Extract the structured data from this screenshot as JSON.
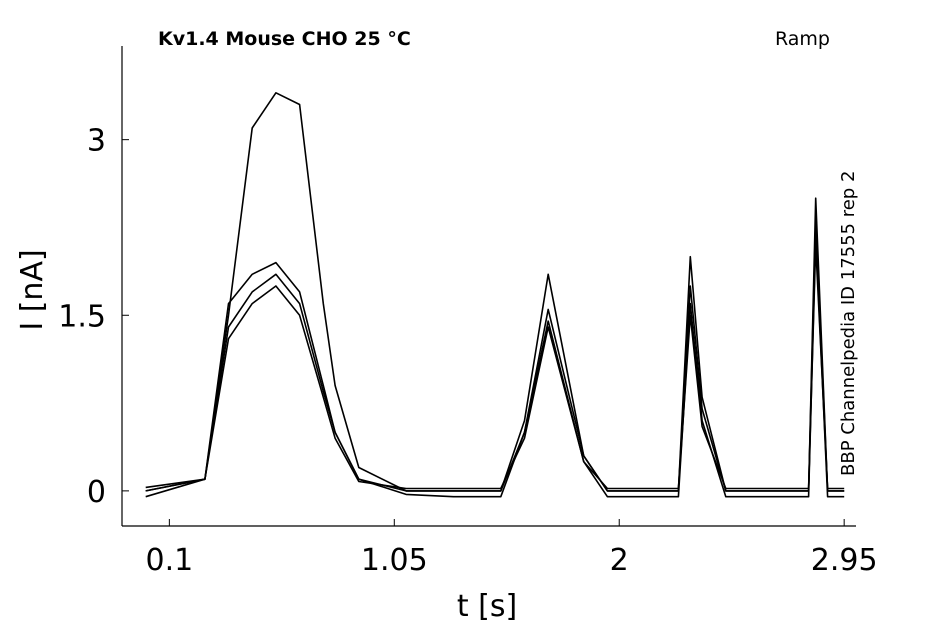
{
  "chart_data": {
    "type": "line",
    "title": "Kv1.4  Mouse  CHO  25 °C",
    "protocol": "Ramp",
    "source": "BBP Channelpedia ID 17555 rep 2",
    "xlabel": "t [s]",
    "ylabel": "I [nA]",
    "xticks": [
      "0.1",
      "1.05",
      "2",
      "2.95"
    ],
    "yticks": [
      "0",
      "1.5",
      "3"
    ],
    "xlim": [
      -0.1,
      3.0
    ],
    "ylim": [
      -0.3,
      3.8
    ],
    "grid": false,
    "series": [
      {
        "x": [
          0.0,
          0.25,
          0.35,
          0.45,
          0.55,
          0.65,
          0.75,
          0.8,
          0.9,
          1.1,
          1.3,
          1.5,
          1.6,
          1.7,
          1.85,
          1.95,
          2.1,
          2.25,
          2.3,
          2.35,
          2.45,
          2.6,
          2.75,
          2.8,
          2.83,
          2.88,
          2.95
        ],
        "y": [
          0.0,
          0.1,
          1.5,
          3.1,
          3.4,
          3.3,
          1.6,
          0.9,
          0.2,
          0.0,
          0.0,
          0.0,
          0.6,
          1.85,
          0.3,
          0.0,
          0.0,
          0.0,
          2.0,
          0.8,
          0.0,
          0.0,
          0.0,
          0.0,
          2.5,
          0.0,
          0.0
        ]
      },
      {
        "x": [
          0.0,
          0.25,
          0.35,
          0.45,
          0.55,
          0.65,
          0.75,
          0.8,
          0.9,
          1.1,
          1.3,
          1.5,
          1.6,
          1.7,
          1.85,
          1.95,
          2.1,
          2.25,
          2.3,
          2.35,
          2.45,
          2.6,
          2.75,
          2.8,
          2.83,
          2.88,
          2.95
        ],
        "y": [
          0.0,
          0.1,
          1.6,
          1.85,
          1.95,
          1.7,
          0.9,
          0.5,
          0.1,
          0.0,
          0.0,
          0.0,
          0.5,
          1.55,
          0.3,
          0.0,
          0.0,
          0.0,
          1.75,
          0.7,
          0.0,
          0.0,
          0.0,
          0.0,
          2.35,
          0.0,
          0.0
        ]
      },
      {
        "x": [
          0.0,
          0.25,
          0.35,
          0.45,
          0.55,
          0.65,
          0.75,
          0.8,
          0.9,
          1.1,
          1.3,
          1.5,
          1.6,
          1.7,
          1.85,
          1.95,
          2.1,
          2.25,
          2.3,
          2.35,
          2.45,
          2.6,
          2.75,
          2.8,
          2.83,
          2.88,
          2.95
        ],
        "y": [
          -0.05,
          0.1,
          1.4,
          1.7,
          1.85,
          1.6,
          0.85,
          0.5,
          0.1,
          -0.03,
          -0.05,
          -0.05,
          0.5,
          1.45,
          0.25,
          -0.05,
          -0.05,
          -0.05,
          1.6,
          0.6,
          -0.05,
          -0.05,
          -0.05,
          -0.05,
          2.2,
          -0.05,
          -0.05
        ]
      },
      {
        "x": [
          0.0,
          0.25,
          0.35,
          0.45,
          0.55,
          0.65,
          0.75,
          0.8,
          0.9,
          1.1,
          1.3,
          1.5,
          1.6,
          1.7,
          1.85,
          1.95,
          2.1,
          2.25,
          2.3,
          2.35,
          2.45,
          2.6,
          2.75,
          2.8,
          2.83,
          2.88,
          2.95
        ],
        "y": [
          0.03,
          0.1,
          1.3,
          1.6,
          1.75,
          1.5,
          0.8,
          0.45,
          0.08,
          0.02,
          0.02,
          0.02,
          0.45,
          1.4,
          0.25,
          0.02,
          0.02,
          0.02,
          1.5,
          0.55,
          0.02,
          0.02,
          0.02,
          0.02,
          2.1,
          0.02,
          0.02
        ]
      }
    ]
  }
}
